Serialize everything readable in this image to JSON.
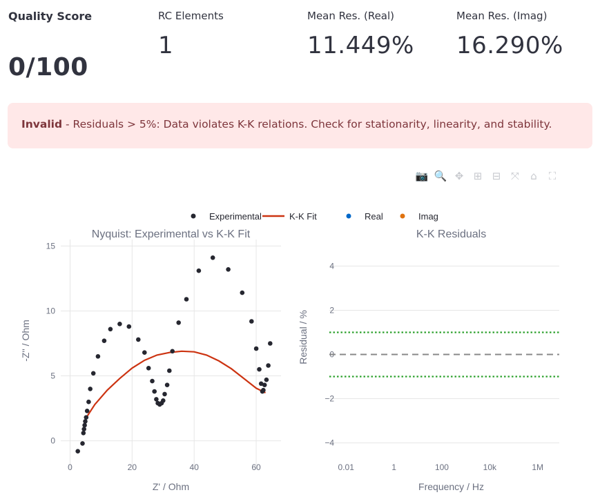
{
  "metrics": {
    "quality": {
      "label": "Quality Score",
      "value": "0/100"
    },
    "rc": {
      "label": "RC Elements",
      "value": "1"
    },
    "real": {
      "label": "Mean Res. (Real)",
      "value": "11.449%"
    },
    "imag": {
      "label": "Mean Res. (Imag)",
      "value": "16.290%"
    }
  },
  "alert": {
    "status": "Invalid",
    "message": " - Residuals > 5%: Data violates K-K relations. Check for stationarity, linearity, and stability."
  },
  "modebar": [
    {
      "icon": "camera-icon",
      "glyph": "📷"
    },
    {
      "icon": "zoom-icon",
      "glyph": "🔍"
    },
    {
      "icon": "pan-icon",
      "glyph": "✥"
    },
    {
      "icon": "zoom-in-icon",
      "glyph": "⊞"
    },
    {
      "icon": "zoom-out-icon",
      "glyph": "⊟"
    },
    {
      "icon": "autoscale-icon",
      "glyph": "⤧"
    },
    {
      "icon": "reset-axes-icon",
      "glyph": "⌂"
    },
    {
      "icon": "fullscreen-icon",
      "glyph": "⛶"
    }
  ],
  "colors": {
    "experimental": "#262730",
    "fit": "#cc3311",
    "real": "#0068c9",
    "imag": "#e0720f",
    "grid": "#e6e6e6",
    "axis_label": "#6b7080",
    "threshold": "#2ca02c",
    "zero_line": "#888888",
    "alert_bg": "#ffe8e8",
    "alert_text": "#7d353b"
  },
  "chart_data": [
    {
      "type": "scatter",
      "title": "Nyquist: Experimental vs K-K Fit",
      "xlabel": "Z' / Ohm",
      "ylabel": "-Z'' / Ohm",
      "xlim": [
        -3,
        68
      ],
      "ylim": [
        -2.2,
        15.5
      ],
      "xticks": [
        0,
        20,
        40,
        60
      ],
      "yticks": [
        0,
        5,
        10,
        15
      ],
      "grid": true,
      "legend": "top",
      "series": [
        {
          "name": "Experimental",
          "mode": "markers",
          "x": [
            2.5,
            4,
            4.3,
            4.5,
            4.7,
            4.9,
            5.2,
            5.5,
            6,
            6.5,
            7.5,
            9,
            11,
            13,
            16,
            19,
            22,
            24,
            25.3,
            26.5,
            27.2,
            27.8,
            28.3,
            28.9,
            29.5,
            30,
            30.5,
            31.3,
            32,
            33,
            35,
            37.5,
            41.5,
            46,
            51,
            55.5,
            58.5,
            60,
            61,
            61.6,
            62,
            62.3,
            62.7,
            63.3,
            63.9,
            64.5
          ],
          "y": [
            -0.8,
            -0.2,
            0.6,
            0.9,
            1.2,
            1.5,
            1.8,
            2.3,
            3.0,
            4.0,
            5.2,
            6.5,
            7.7,
            8.6,
            9.0,
            8.8,
            7.8,
            6.8,
            5.6,
            4.6,
            3.8,
            3.2,
            2.9,
            2.8,
            2.9,
            3.1,
            3.6,
            4.3,
            5.4,
            6.9,
            9.1,
            10.9,
            13.1,
            14.1,
            13.2,
            11.4,
            9.2,
            7.1,
            5.5,
            4.4,
            3.8,
            3.9,
            4.3,
            4.7,
            5.8,
            7.5
          ]
        },
        {
          "name": "K-K Fit",
          "mode": "line",
          "x": [
            5,
            8,
            12,
            16,
            20,
            24,
            28,
            32,
            36,
            40,
            44,
            48,
            52,
            56,
            60,
            63
          ],
          "y": [
            1.7,
            2.8,
            3.9,
            4.8,
            5.6,
            6.2,
            6.6,
            6.8,
            6.9,
            6.85,
            6.6,
            6.15,
            5.55,
            4.8,
            4.05,
            3.7
          ]
        }
      ]
    },
    {
      "type": "line",
      "title": "K-K Residuals",
      "xlabel": "Frequency / Hz",
      "ylabel": "Residual / %",
      "xscale": "log",
      "xlim": [
        0.002,
        8000000
      ],
      "ylim": [
        -5.2,
        5.2
      ],
      "xticks": [
        0.01,
        1,
        100,
        10000,
        1000000
      ],
      "xticklabels": [
        "0.01",
        "1",
        "100",
        "10k",
        "1M"
      ],
      "yticks": [
        -4,
        -2,
        0,
        2,
        4
      ],
      "yticklabels": [
        "−4",
        "−2",
        "0",
        "2",
        "4"
      ],
      "grid": true,
      "reference_lines": [
        {
          "y": 1,
          "style": "dotted"
        },
        {
          "y": -1,
          "style": "dotted"
        },
        {
          "y": 0,
          "style": "dashed"
        }
      ],
      "series": [
        {
          "name": "Real",
          "values": []
        },
        {
          "name": "Imag",
          "values": []
        }
      ]
    }
  ]
}
